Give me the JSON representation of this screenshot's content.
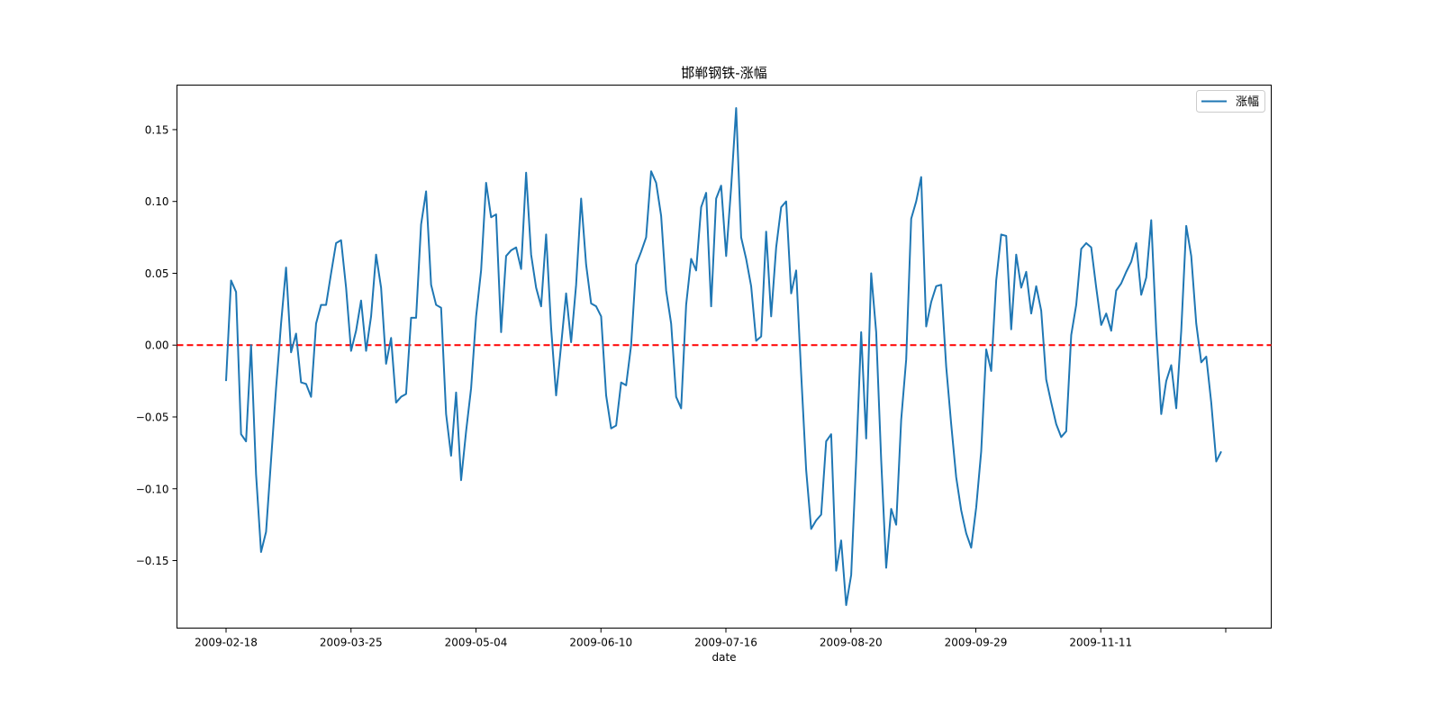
{
  "chart_data": {
    "type": "line",
    "title": "邯郸钢铁-涨幅",
    "xlabel": "date",
    "ylabel": "",
    "ylim": [
      -0.197,
      0.181
    ],
    "yticks": [
      -0.15,
      -0.1,
      -0.05,
      0.0,
      0.05,
      0.1,
      0.15
    ],
    "ytick_labels": [
      "−0.15",
      "−0.10",
      "−0.05",
      "0.00",
      "0.05",
      "0.10",
      "0.15"
    ],
    "xticks": [
      "2009-02-18",
      "2009-03-25",
      "2009-05-04",
      "2009-06-10",
      "2009-07-16",
      "2009-08-20",
      "2009-09-29",
      "2009-11-11",
      ""
    ],
    "legend_position": "top-right",
    "grid": false,
    "line_color": "#1f77b4",
    "zero_line": {
      "y": 0,
      "color": "#ff0000",
      "style": "dashed"
    },
    "series": [
      {
        "name": "涨幅",
        "values": [
          -0.025,
          0.045,
          0.037,
          -0.062,
          -0.067,
          0.0,
          -0.09,
          -0.144,
          -0.13,
          -0.08,
          -0.03,
          0.015,
          0.054,
          -0.005,
          0.008,
          -0.026,
          -0.027,
          -0.036,
          0.015,
          0.028,
          0.028,
          0.05,
          0.071,
          0.073,
          0.04,
          -0.004,
          0.01,
          0.031,
          -0.004,
          0.02,
          0.063,
          0.04,
          -0.013,
          0.005,
          -0.04,
          -0.036,
          -0.034,
          0.019,
          0.019,
          0.084,
          0.107,
          0.042,
          0.028,
          0.026,
          -0.048,
          -0.077,
          -0.033,
          -0.094,
          -0.06,
          -0.03,
          0.02,
          0.052,
          0.113,
          0.089,
          0.091,
          0.009,
          0.062,
          0.066,
          0.068,
          0.053,
          0.12,
          0.063,
          0.04,
          0.027,
          0.077,
          0.012,
          -0.035,
          0.0,
          0.036,
          0.002,
          0.042,
          0.102,
          0.056,
          0.029,
          0.027,
          0.02,
          -0.035,
          -0.058,
          -0.056,
          -0.026,
          -0.028,
          0.0,
          0.056,
          0.065,
          0.075,
          0.121,
          0.113,
          0.09,
          0.038,
          0.015,
          -0.036,
          -0.044,
          0.028,
          0.06,
          0.052,
          0.096,
          0.106,
          0.027,
          0.102,
          0.111,
          0.062,
          0.11,
          0.165,
          0.075,
          0.06,
          0.041,
          0.003,
          0.006,
          0.079,
          0.02,
          0.068,
          0.096,
          0.1,
          0.036,
          0.052,
          -0.02,
          -0.087,
          -0.128,
          -0.122,
          -0.118,
          -0.067,
          -0.062,
          -0.157,
          -0.136,
          -0.181,
          -0.16,
          -0.08,
          0.009,
          -0.065,
          0.05,
          0.009,
          -0.08,
          -0.155,
          -0.114,
          -0.125,
          -0.052,
          -0.01,
          0.088,
          0.1,
          0.117,
          0.013,
          0.03,
          0.041,
          0.042,
          -0.015,
          -0.055,
          -0.092,
          -0.115,
          -0.131,
          -0.141,
          -0.113,
          -0.074,
          -0.003,
          -0.018,
          0.045,
          0.077,
          0.076,
          0.011,
          0.063,
          0.04,
          0.051,
          0.022,
          0.041,
          0.024,
          -0.024,
          -0.04,
          -0.055,
          -0.064,
          -0.06,
          0.007,
          0.028,
          0.067,
          0.071,
          0.068,
          0.04,
          0.014,
          0.022,
          0.01,
          0.038,
          0.043,
          0.051,
          0.058,
          0.071,
          0.035,
          0.047,
          0.087,
          0.01,
          -0.048,
          -0.025,
          -0.014,
          -0.044,
          0.01,
          0.083,
          0.062,
          0.015,
          -0.012,
          -0.008,
          -0.04,
          -0.081,
          -0.074
        ]
      }
    ]
  }
}
